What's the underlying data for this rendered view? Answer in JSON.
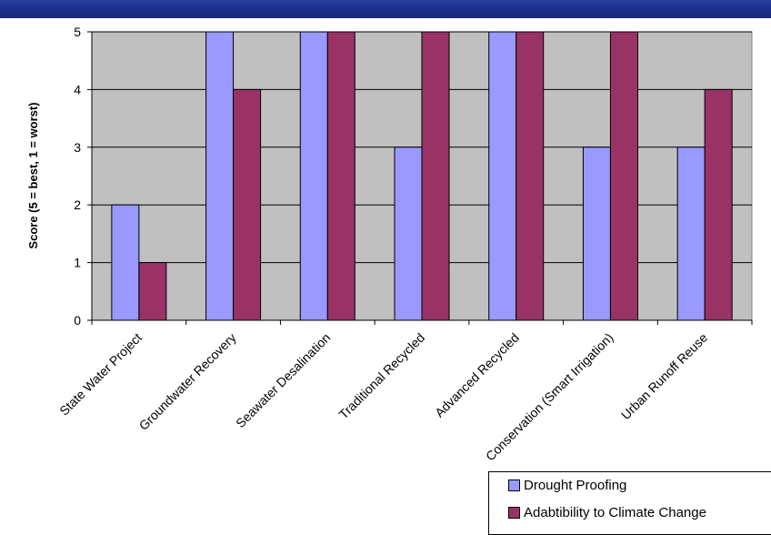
{
  "chart_data": {
    "type": "bar",
    "categories": [
      "State Water Project",
      "Groundwater Recovery",
      "Seawater Desalination",
      "Traditional Recycled",
      "Advanced Recycled",
      "Conservation (Smart Irrigation)",
      "Urban Runoff Reuse"
    ],
    "series": [
      {
        "name": "Drought Proofing",
        "values": [
          2,
          5,
          5,
          3,
          5,
          3,
          3
        ],
        "color": "#9999ff"
      },
      {
        "name": "Adabtibility to Climate Change",
        "values": [
          1,
          4,
          5,
          5,
          5,
          5,
          4
        ],
        "color": "#993366"
      }
    ],
    "ylabel": "Score (5 = best, 1 = worst)",
    "xlabel": "",
    "ylim": [
      0,
      5
    ],
    "yticks": [
      "0",
      "1",
      "2",
      "3",
      "4",
      "5"
    ],
    "grid": true,
    "plot_background": "#c0c0c0",
    "legend_position": "bottom-right"
  },
  "banner_color": "#1c2d86"
}
